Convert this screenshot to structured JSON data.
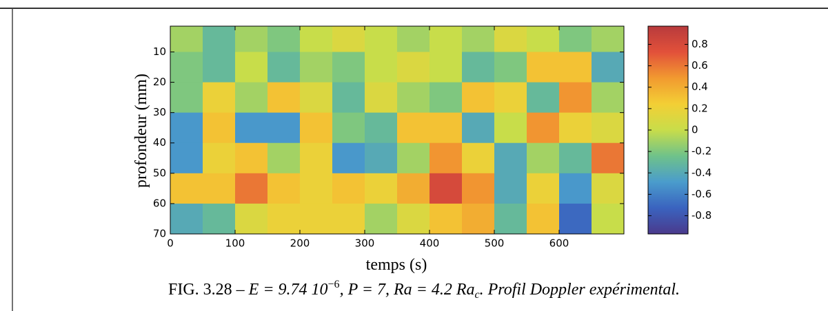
{
  "chart_data": {
    "type": "heatmap",
    "xlabel": "temps (s)",
    "ylabel": "profondeur (mm)",
    "x_bins": [
      0,
      50,
      100,
      150,
      200,
      250,
      300,
      350,
      400,
      450,
      500,
      550,
      600,
      650,
      700
    ],
    "y_bins": [
      1.5,
      10,
      20,
      30,
      40,
      50,
      60,
      70
    ],
    "values": [
      [
        -0.1,
        -0.3,
        -0.1,
        -0.2,
        0,
        0.1,
        0,
        -0.1,
        0,
        -0.1,
        0.1,
        0,
        -0.2,
        -0.1
      ],
      [
        -0.2,
        -0.3,
        0,
        -0.3,
        -0.1,
        -0.2,
        0,
        0.1,
        0,
        -0.3,
        -0.2,
        0.3,
        0.3,
        -0.4
      ],
      [
        -0.2,
        0.2,
        -0.1,
        0.3,
        0.1,
        -0.3,
        0.1,
        -0.1,
        -0.2,
        0.3,
        0.2,
        -0.3,
        0.5,
        -0.1
      ],
      [
        -0.5,
        0.3,
        -0.5,
        -0.5,
        0.3,
        -0.2,
        -0.3,
        0.3,
        0.3,
        -0.4,
        0,
        0.5,
        0.2,
        0.1
      ],
      [
        -0.5,
        0.2,
        0.3,
        -0.1,
        0.2,
        -0.5,
        -0.4,
        -0.1,
        0.5,
        0.2,
        -0.4,
        -0.1,
        -0.3,
        0.6
      ],
      [
        0.3,
        0.3,
        0.6,
        0.3,
        0.2,
        0.3,
        0.2,
        0.4,
        0.8,
        0.5,
        -0.4,
        0.2,
        -0.5,
        0.1
      ],
      [
        -0.4,
        -0.3,
        0.1,
        0.2,
        0.2,
        0.2,
        -0.1,
        0.1,
        0.3,
        0.4,
        -0.3,
        0.3,
        -0.7,
        0
      ]
    ],
    "xlim": [
      0,
      700
    ],
    "xticks": [
      0,
      100,
      200,
      300,
      400,
      500,
      600
    ],
    "ylim": [
      1.5,
      70
    ],
    "y_reversed": true,
    "yticks": [
      10,
      20,
      30,
      40,
      50,
      60,
      70
    ],
    "clim": [
      -0.97,
      0.97
    ],
    "cticks": [
      -0.8,
      -0.6,
      -0.4,
      -0.2,
      0,
      0.2,
      0.4,
      0.6,
      0.8
    ],
    "colormap": [
      "#4a3a8c",
      "#3a63bf",
      "#4a9ccc",
      "#6fc28a",
      "#c8dd4a",
      "#f3cf35",
      "#f29a30",
      "#e2513a",
      "#b83a3c"
    ],
    "caption": {
      "label": "FIG. 3.28 –",
      "math_1": "E = 9.74 10",
      "exponent": "−6",
      "math_2": ", P = 7, Ra = 4.2 Ra",
      "subscript": "c",
      "text": ". Profil Doppler expérimental."
    }
  }
}
